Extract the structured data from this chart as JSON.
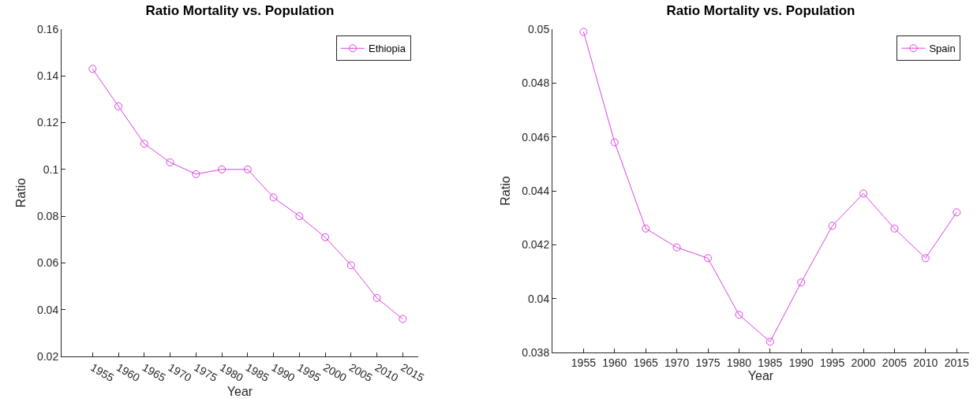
{
  "chart_data": [
    {
      "type": "line",
      "title": "Ratio Mortality vs. Population",
      "xlabel": "Year",
      "ylabel": "Ratio",
      "x": [
        1955,
        1960,
        1965,
        1970,
        1975,
        1980,
        1985,
        1990,
        1995,
        2000,
        2005,
        2010,
        2015
      ],
      "series": [
        {
          "name": "Ethiopia",
          "color": "#e040e0",
          "values": [
            0.143,
            0.127,
            0.111,
            0.103,
            0.098,
            0.1,
            0.1,
            0.088,
            0.08,
            0.071,
            0.059,
            0.045,
            0.036
          ]
        }
      ],
      "xlim": [
        1949,
        2018
      ],
      "xticks": [
        1955,
        1960,
        1965,
        1970,
        1975,
        1980,
        1985,
        1990,
        1995,
        2000,
        2005,
        2010,
        2015
      ],
      "ylim": [
        0.02,
        0.16
      ],
      "yticks": [
        0.02,
        0.04,
        0.06,
        0.08,
        0.1,
        0.12,
        0.14,
        0.16
      ],
      "grid": false,
      "legend": "top right",
      "marker": "circle",
      "line_style": "solid"
    },
    {
      "type": "line",
      "title": "Ratio Mortality vs. Population",
      "xlabel": "Year",
      "ylabel": "Ratio",
      "x": [
        1955,
        1960,
        1965,
        1970,
        1975,
        1980,
        1985,
        1990,
        1995,
        2000,
        2005,
        2010,
        2015
      ],
      "series": [
        {
          "name": "Spain",
          "color": "#e040e0",
          "values": [
            0.0499,
            0.0458,
            0.0426,
            0.0419,
            0.0415,
            0.0394,
            0.0384,
            0.0406,
            0.0427,
            0.0439,
            0.0426,
            0.0415,
            0.0432
          ]
        }
      ],
      "xlim": [
        1950,
        2017
      ],
      "xticks": [
        1955,
        1960,
        1965,
        1970,
        1975,
        1980,
        1985,
        1990,
        1995,
        2000,
        2005,
        2010,
        2015
      ],
      "ylim": [
        0.038,
        0.05
      ],
      "yticks": [
        0.038,
        0.04,
        0.042,
        0.044,
        0.046,
        0.048,
        0.05
      ],
      "grid": false,
      "legend": "top right",
      "marker": "circle",
      "line_style": "solid"
    }
  ]
}
